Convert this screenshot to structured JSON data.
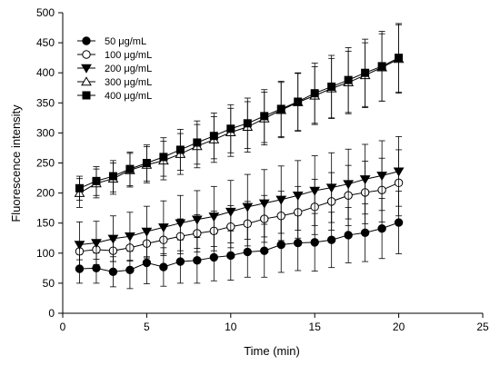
{
  "chart_data": {
    "type": "line",
    "title": "",
    "xlabel": "Time (min)",
    "ylabel": "Fluorescence intensity",
    "xlim": [
      0,
      25
    ],
    "ylim": [
      0,
      500
    ],
    "xticks": [
      0,
      5,
      10,
      15,
      20,
      25
    ],
    "yticks": [
      0,
      50,
      100,
      150,
      200,
      250,
      300,
      350,
      400,
      450,
      500
    ],
    "grid": false,
    "legend_position": "top-left",
    "x": [
      1,
      2,
      3,
      4,
      5,
      6,
      7,
      8,
      9,
      10,
      11,
      12,
      13,
      14,
      15,
      16,
      17,
      18,
      19,
      20
    ],
    "series": [
      {
        "name": "50 μg/mL",
        "marker": "filled-circle",
        "values": [
          74,
          75,
          69,
          72,
          84,
          77,
          86,
          88,
          93,
          96,
          102,
          104,
          114,
          117,
          118,
          122,
          130,
          134,
          141,
          151
        ],
        "errors": [
          24,
          25,
          25,
          31,
          35,
          32,
          36,
          38,
          39,
          41,
          42,
          44,
          46,
          46,
          48,
          46,
          46,
          48,
          50,
          52
        ]
      },
      {
        "name": "100 μg/mL",
        "marker": "open-circle",
        "values": [
          103,
          106,
          104,
          109,
          116,
          122,
          128,
          133,
          137,
          144,
          149,
          157,
          162,
          168,
          177,
          186,
          196,
          201,
          205,
          217
        ],
        "errors": [
          14,
          16,
          18,
          22,
          24,
          26,
          29,
          31,
          33,
          35,
          37,
          39,
          41,
          43,
          46,
          48,
          50,
          52,
          53,
          55
        ]
      },
      {
        "name": "200 μg/mL",
        "marker": "filled-triangle-down",
        "values": [
          114,
          117,
          124,
          128,
          136,
          143,
          150,
          156,
          161,
          169,
          177,
          183,
          189,
          196,
          204,
          209,
          215,
          223,
          229,
          236
        ],
        "errors": [
          38,
          36,
          38,
          40,
          42,
          44,
          46,
          48,
          50,
          52,
          54,
          56,
          56,
          58,
          58,
          58,
          58,
          58,
          58,
          58
        ]
      },
      {
        "name": "300 μg/mL",
        "marker": "open-triangle-up",
        "values": [
          200,
          216,
          224,
          238,
          247,
          254,
          265,
          278,
          289,
          301,
          310,
          324,
          338,
          351,
          362,
          374,
          384,
          396,
          409,
          423
        ],
        "errors": [
          24,
          24,
          26,
          28,
          30,
          32,
          34,
          36,
          38,
          40,
          42,
          44,
          46,
          48,
          48,
          50,
          52,
          54,
          56,
          57
        ]
      },
      {
        "name": "400 μg/mL",
        "marker": "filled-square",
        "values": [
          208,
          220,
          228,
          240,
          250,
          260,
          272,
          284,
          295,
          307,
          316,
          328,
          340,
          352,
          366,
          377,
          388,
          400,
          411,
          425
        ],
        "errors": [
          20,
          24,
          26,
          28,
          30,
          32,
          34,
          36,
          38,
          40,
          42,
          44,
          46,
          48,
          50,
          52,
          54,
          56,
          58,
          57
        ]
      }
    ]
  }
}
